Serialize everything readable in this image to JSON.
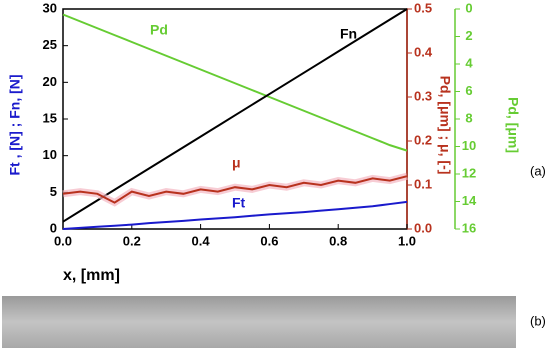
{
  "chart_data": {
    "type": "line",
    "x": [
      0,
      0.05,
      0.1,
      0.15,
      0.2,
      0.25,
      0.3,
      0.35,
      0.4,
      0.45,
      0.5,
      0.55,
      0.6,
      0.65,
      0.7,
      0.75,
      0.8,
      0.85,
      0.9,
      0.95,
      1.0
    ],
    "xlabel": "x, [mm]",
    "ylabel": "Ft , [N] ; Fn, [N]",
    "y2label": "Pd, [μm] ; μ, [-]",
    "y3label": "Pd, [μm]",
    "xlim": [
      0,
      1
    ],
    "xticks": [
      {
        "value": 0,
        "label": "0.0"
      },
      0.2,
      0.4,
      0.6,
      0.8,
      {
        "value": 1,
        "label": "1.0"
      }
    ],
    "ylim": [
      0,
      30
    ],
    "yticks": [
      0,
      5,
      10,
      15,
      20,
      25,
      30
    ],
    "y2lim": [
      0,
      0.5
    ],
    "y2ticks": [
      {
        "value": 0,
        "label": "0.0"
      },
      0.1,
      0.2,
      0.3,
      0.4,
      0.5
    ],
    "y3lim": [
      0,
      16
    ],
    "y3_inverted": true,
    "y3ticks": [
      0,
      2,
      4,
      6,
      8,
      10,
      12,
      14,
      16
    ],
    "series": [
      {
        "name": "Fn",
        "color": "#000000",
        "axis": "y",
        "values": [
          1,
          2.45,
          3.9,
          5.35,
          6.8,
          8.25,
          9.7,
          11.15,
          12.6,
          14.05,
          15.5,
          16.95,
          18.4,
          19.85,
          21.3,
          22.75,
          24.2,
          25.65,
          27.1,
          28.55,
          30
        ]
      },
      {
        "name": "Ft",
        "color": "#1a1acc",
        "axis": "y",
        "values": [
          0,
          0.15,
          0.3,
          0.45,
          0.6,
          0.8,
          0.95,
          1.1,
          1.3,
          1.45,
          1.6,
          1.8,
          2.0,
          2.15,
          2.3,
          2.5,
          2.7,
          2.9,
          3.1,
          3.4,
          3.7
        ]
      },
      {
        "name": "μ",
        "color": "#b8321e",
        "axis": "y2",
        "values": [
          0.08,
          0.085,
          0.08,
          0.06,
          0.085,
          0.075,
          0.085,
          0.08,
          0.09,
          0.085,
          0.095,
          0.09,
          0.1,
          0.095,
          0.105,
          0.1,
          0.11,
          0.105,
          0.115,
          0.11,
          0.12
        ]
      },
      {
        "name": "Pd",
        "color": "#66cc33",
        "axis": "y3",
        "values": [
          0.4,
          0.9,
          1.4,
          1.9,
          2.4,
          2.9,
          3.4,
          3.9,
          4.4,
          4.9,
          5.4,
          5.9,
          6.4,
          6.9,
          7.4,
          7.9,
          8.4,
          8.9,
          9.4,
          9.9,
          10.3
        ]
      }
    ],
    "panel_labels": [
      "(a)",
      "(b)"
    ]
  }
}
